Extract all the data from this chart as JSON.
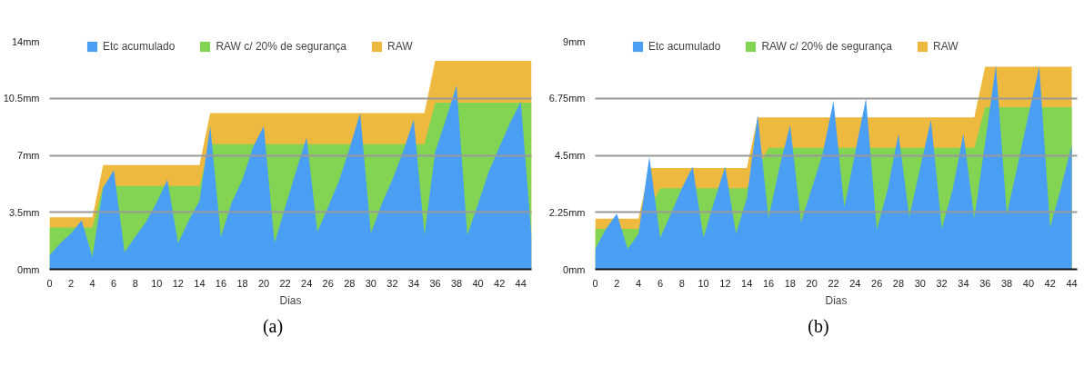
{
  "chart_data": [
    {
      "type": "area",
      "xlabel": "Dias",
      "annotations": [
        "(a)"
      ],
      "legend": "top",
      "grid": "y",
      "x": [
        0,
        1,
        2,
        3,
        4,
        5,
        6,
        7,
        8,
        9,
        10,
        11,
        12,
        13,
        14,
        15,
        16,
        17,
        18,
        19,
        20,
        21,
        22,
        23,
        24,
        25,
        26,
        27,
        28,
        29,
        30,
        31,
        32,
        33,
        34,
        35,
        36,
        37,
        38,
        39,
        40,
        41,
        42,
        43,
        44,
        45
      ],
      "xlim": [
        0,
        45
      ],
      "xticks": [
        0,
        2,
        4,
        6,
        8,
        10,
        12,
        14,
        16,
        18,
        20,
        22,
        24,
        26,
        28,
        30,
        32,
        34,
        36,
        38,
        40,
        42,
        44
      ],
      "ylim": [
        0,
        14
      ],
      "yticks": [
        {
          "value": 0,
          "label": "0mm"
        },
        {
          "value": 3.5,
          "label": "3.5mm"
        },
        {
          "value": 7,
          "label": "7mm"
        },
        {
          "value": 10.5,
          "label": "10.5mm"
        },
        {
          "value": 14,
          "label": "14mm"
        }
      ],
      "series": [
        {
          "name": "Etc acumulado",
          "color": "#4a9ff5",
          "values": [
            0.85,
            1.6,
            2.2,
            3.0,
            0.75,
            5.0,
            6.1,
            1.05,
            2.0,
            2.9,
            4.1,
            5.5,
            1.6,
            3.0,
            4.2,
            8.8,
            2.0,
            4.1,
            5.5,
            7.5,
            8.8,
            1.6,
            3.8,
            6.0,
            8.1,
            2.3,
            3.8,
            5.4,
            7.4,
            9.6,
            2.2,
            4.0,
            5.5,
            7.2,
            9.2,
            2.1,
            7.2,
            9.2,
            11.3,
            2.1,
            4.0,
            6.0,
            7.5,
            9.0,
            10.3,
            2.0
          ]
        },
        {
          "name": "RAW c/ 20% de segurança",
          "color": "#82d452",
          "values": [
            2.56,
            2.56,
            2.56,
            2.56,
            2.56,
            5.12,
            5.12,
            5.12,
            5.12,
            5.12,
            5.12,
            5.12,
            5.12,
            5.12,
            5.12,
            7.68,
            7.68,
            7.68,
            7.68,
            7.68,
            7.68,
            7.68,
            7.68,
            7.68,
            7.68,
            7.68,
            7.68,
            7.68,
            7.68,
            7.68,
            7.68,
            7.68,
            7.68,
            7.68,
            7.68,
            7.68,
            10.24,
            10.24,
            10.24,
            10.24,
            10.24,
            10.24,
            10.24,
            10.24,
            10.24,
            10.24
          ]
        },
        {
          "name": "RAW",
          "color": "#eeb93f",
          "values": [
            3.2,
            3.2,
            3.2,
            3.2,
            3.2,
            6.4,
            6.4,
            6.4,
            6.4,
            6.4,
            6.4,
            6.4,
            6.4,
            6.4,
            6.4,
            9.6,
            9.6,
            9.6,
            9.6,
            9.6,
            9.6,
            9.6,
            9.6,
            9.6,
            9.6,
            9.6,
            9.6,
            9.6,
            9.6,
            9.6,
            9.6,
            9.6,
            9.6,
            9.6,
            9.6,
            9.6,
            12.8,
            12.8,
            12.8,
            12.8,
            12.8,
            12.8,
            12.8,
            12.8,
            12.8,
            12.8
          ]
        }
      ]
    },
    {
      "type": "area",
      "xlabel": "Dias",
      "annotations": [
        "(b)"
      ],
      "legend": "top",
      "grid": "y",
      "x": [
        0,
        1,
        2,
        3,
        4,
        5,
        6,
        7,
        8,
        9,
        10,
        11,
        12,
        13,
        14,
        15,
        16,
        17,
        18,
        19,
        20,
        21,
        22,
        23,
        24,
        25,
        26,
        27,
        28,
        29,
        30,
        31,
        32,
        33,
        34,
        35,
        36,
        37,
        38,
        39,
        40,
        41,
        42,
        43,
        44
      ],
      "xlim": [
        0,
        44.5
      ],
      "xticks": [
        0,
        2,
        4,
        6,
        8,
        10,
        12,
        14,
        16,
        18,
        20,
        22,
        24,
        26,
        28,
        30,
        32,
        34,
        36,
        38,
        40,
        42,
        44
      ],
      "ylim": [
        0,
        9
      ],
      "yticks": [
        {
          "value": 0,
          "label": "0mm"
        },
        {
          "value": 2.25,
          "label": "2.25mm"
        },
        {
          "value": 4.5,
          "label": "4.5mm"
        },
        {
          "value": 6.75,
          "label": "6.75mm"
        },
        {
          "value": 9,
          "label": "9mm"
        }
      ],
      "series": [
        {
          "name": "Etc acumulado",
          "color": "#4a9ff5",
          "values": [
            0.8,
            1.6,
            2.2,
            0.8,
            1.4,
            4.45,
            1.25,
            2.2,
            3.2,
            4.05,
            1.25,
            2.7,
            4.05,
            1.4,
            2.8,
            6.1,
            2.0,
            4.0,
            5.7,
            1.85,
            3.2,
            4.55,
            6.65,
            2.45,
            4.6,
            6.75,
            1.55,
            3.15,
            5.35,
            2.05,
            4.0,
            5.9,
            1.6,
            3.15,
            5.35,
            2.0,
            5.0,
            8.05,
            2.15,
            4.1,
            6.1,
            8.0,
            1.65,
            3.2,
            4.9
          ]
        },
        {
          "name": "RAW c/ 20% de segurança",
          "color": "#82d452",
          "values": [
            1.6,
            1.6,
            null,
            1.6,
            1.6,
            null,
            3.2,
            3.2,
            3.2,
            null,
            3.2,
            3.2,
            null,
            3.2,
            3.2,
            null,
            4.8,
            4.8,
            4.8,
            4.8,
            4.8,
            4.8,
            null,
            4.8,
            4.8,
            null,
            4.8,
            4.8,
            4.8,
            4.8,
            4.8,
            4.8,
            4.8,
            4.8,
            4.8,
            4.8,
            6.4,
            null,
            6.4,
            6.4,
            6.4,
            6.4,
            6.4,
            6.4,
            6.4
          ]
        },
        {
          "name": "RAW",
          "color": "#eeb93f",
          "values": [
            2.0,
            2.0,
            2.0,
            2.0,
            2.0,
            4.0,
            4.0,
            4.0,
            4.0,
            4.0,
            4.0,
            4.0,
            4.0,
            4.0,
            4.0,
            6.0,
            6.0,
            6.0,
            6.0,
            6.0,
            6.0,
            6.0,
            6.0,
            6.0,
            6.0,
            6.0,
            6.0,
            6.0,
            6.0,
            6.0,
            6.0,
            6.0,
            6.0,
            6.0,
            6.0,
            6.0,
            8.0,
            8.0,
            8.0,
            8.0,
            8.0,
            8.0,
            8.0,
            8.0,
            8.0
          ]
        }
      ]
    }
  ]
}
